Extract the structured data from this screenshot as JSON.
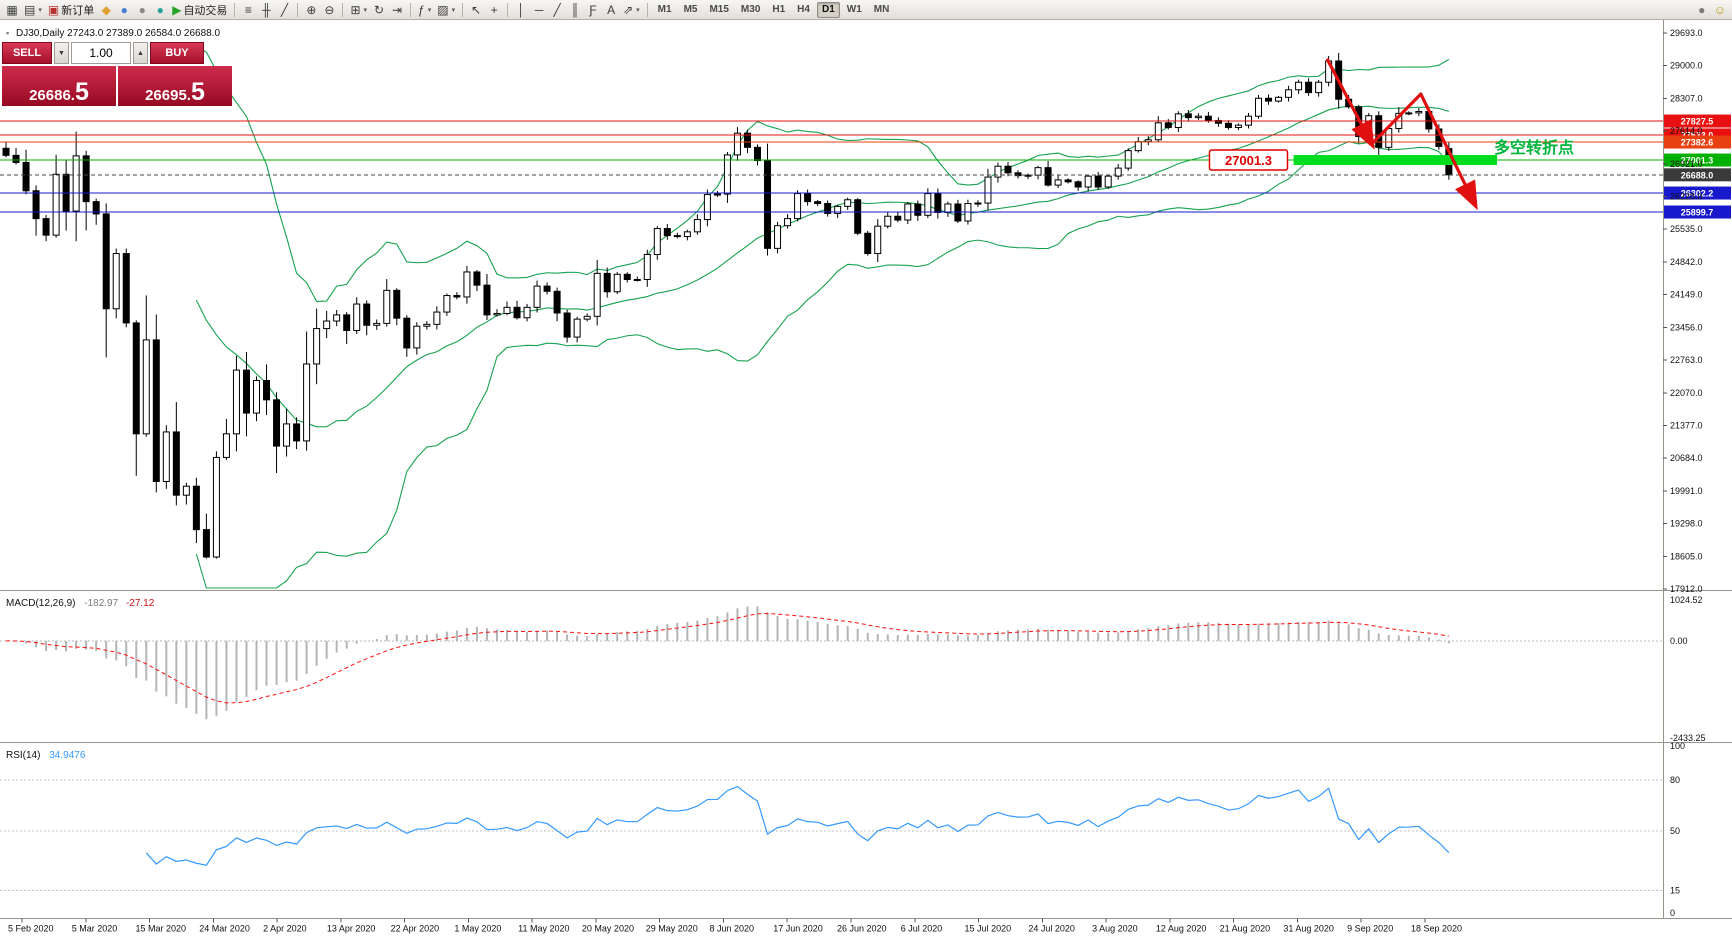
{
  "toolbar": {
    "dropdown_glyph": "▾",
    "items": [
      {
        "name": "new-chart-button",
        "glyph": "▦"
      },
      {
        "name": "chart-profiles-button",
        "glyph": "▤",
        "dropdown": true
      },
      {
        "name": "new-order-button",
        "glyph": "▣",
        "color": "#b8312f",
        "label": "新订单"
      },
      {
        "name": "metaeditor-button",
        "glyph": "◆",
        "color": "#e0a030"
      },
      {
        "name": "history-center-button",
        "glyph": "●",
        "color": "#4a7fd4"
      },
      {
        "name": "global-settings-button",
        "glyph": "●",
        "color": "#8a8a8a"
      },
      {
        "name": "market-button",
        "glyph": "●",
        "color": "#2aa198"
      },
      {
        "name": "autotrading-button",
        "glyph": "▶",
        "color": "#27a427",
        "label": "自动交易"
      },
      {
        "type": "sep"
      },
      {
        "name": "bar-chart-button",
        "glyph": "≡"
      },
      {
        "name": "candlestick-chart-button",
        "glyph": "╫"
      },
      {
        "name": "line-chart-button",
        "glyph": "╱"
      },
      {
        "type": "sep"
      },
      {
        "name": "zoom-in-button",
        "glyph": "⊕"
      },
      {
        "name": "zoom-out-button",
        "glyph": "⊖"
      },
      {
        "type": "sep"
      },
      {
        "name": "tile-windows-button",
        "glyph": "⊞",
        "dropdown": true
      },
      {
        "name": "auto-scroll-button",
        "glyph": "↻"
      },
      {
        "name": "chart-shift-button",
        "glyph": "⇥"
      },
      {
        "type": "sep"
      },
      {
        "name": "indicators-button",
        "glyph": "ƒ",
        "dropdown": true
      },
      {
        "name": "templates-button",
        "glyph": "▨",
        "dropdown": true
      },
      {
        "type": "sep"
      },
      {
        "name": "cursor-button",
        "glyph": "↖"
      },
      {
        "name": "crosshair-button",
        "glyph": "+"
      },
      {
        "type": "sep"
      },
      {
        "name": "vertical-line-button",
        "glyph": "│"
      },
      {
        "name": "horizontal-line-button",
        "glyph": "─"
      },
      {
        "name": "trendline-button",
        "glyph": "╱"
      },
      {
        "name": "channel-button",
        "glyph": "║"
      },
      {
        "name": "fibonacci-button",
        "glyph": "Ƒ"
      },
      {
        "name": "text-button",
        "glyph": "A"
      },
      {
        "name": "arrows-button",
        "glyph": "⇗",
        "dropdown": true
      },
      {
        "type": "sep"
      }
    ],
    "timeframes": [
      "M1",
      "M5",
      "M15",
      "M30",
      "H1",
      "H4",
      "D1",
      "W1",
      "MN"
    ],
    "active_timeframe": "D1",
    "right_icons": [
      {
        "name": "search-button",
        "glyph": "●",
        "color": "#7a7a7a"
      },
      {
        "name": "community-button",
        "glyph": "☺",
        "color": "#c89a20"
      }
    ]
  },
  "trade": {
    "sell_label": "SELL",
    "buy_label": "BUY",
    "volume": "1.00",
    "volume_up_glyph": "▲",
    "volume_down_glyph": "▼",
    "sell_price_main": "26686.",
    "sell_price_pip": "5",
    "buy_price_main": "26695.",
    "buy_price_pip": "5"
  },
  "chart": {
    "header_icon": "▪",
    "header": "DJ30,Daily  27243.0 27389.0 26584.0 26688.0"
  },
  "chart_data": {
    "type": "candlestick",
    "symbol": "DJ30",
    "timeframe": "Daily",
    "title_ohlc": {
      "open": 27243.0,
      "high": 27389.0,
      "low": 26584.0,
      "close": 26688.0
    },
    "closes": [
      27100,
      26950,
      26350,
      25760,
      25410,
      26700,
      25920,
      27090,
      26120,
      25860,
      23850,
      25020,
      23550,
      21200,
      23190,
      20190,
      21240,
      19900,
      20090,
      19170,
      18590,
      20700,
      21200,
      22550,
      21640,
      22330,
      21920,
      20940,
      21410,
      21050,
      22680,
      23430,
      23590,
      23720,
      23390,
      23950,
      23500,
      23540,
      24240,
      23650,
      23020,
      23480,
      23520,
      23780,
      24130,
      24100,
      24630,
      24350,
      23720,
      23750,
      23880,
      23660,
      23880,
      24330,
      24220,
      23760,
      23250,
      23630,
      23690,
      24600,
      24210,
      24580,
      24470,
      24470,
      25000,
      25550,
      25400,
      25380,
      25480,
      25740,
      26270,
      26280,
      27110,
      27570,
      27270,
      26990,
      25130,
      25610,
      25760,
      26290,
      26120,
      26080,
      25870,
      26020,
      26160,
      25450,
      25020,
      25600,
      25810,
      25730,
      26070,
      25830,
      26290,
      25890,
      26070,
      25710,
      26080,
      26090,
      26640,
      26870,
      26730,
      26670,
      26680,
      26840,
      26470,
      26580,
      26540,
      26430,
      26660,
      26430,
      26660,
      26830,
      27200,
      27390,
      27430,
      27790,
      27690,
      27980,
      27900,
      27930,
      27840,
      27780,
      27690,
      27740,
      27930,
      28310,
      28250,
      28330,
      28490,
      28650,
      28430,
      28650,
      29100,
      28290,
      28130,
      27500,
      27940,
      27270,
      27670,
      27990,
      28000,
      28030,
      27660,
      27290,
      26688
    ],
    "last_candle": {
      "open": 27243.0,
      "high": 27389.0,
      "low": 26584.0,
      "close": 26688.0
    },
    "y_axis": {
      "top_price": 29693.0,
      "bottom_price": 17912.0,
      "tick_labels": [
        "29693.0",
        "29000.0",
        "28307.0",
        "27614.0",
        "26921.0",
        "26228.0",
        "25535.0",
        "24842.0",
        "24149.0",
        "23456.0",
        "22763.0",
        "22070.0",
        "21377.0",
        "20684.0",
        "19991.0",
        "19298.0",
        "18605.0",
        "17912.0"
      ]
    },
    "x_axis": {
      "date_labels": [
        "5 Feb 2020",
        "5 Mar 2020",
        "15 Mar 2020",
        "24 Mar 2020",
        "2 Apr 2020",
        "13 Apr 2020",
        "22 Apr 2020",
        "1 May 2020",
        "11 May 2020",
        "20 May 2020",
        "29 May 2020",
        "8 Jun 2020",
        "17 Jun 2020",
        "26 Jun 2020",
        "6 Jul 2020",
        "15 Jul 2020",
        "24 Jul 2020",
        "3 Aug 2020",
        "12 Aug 2020",
        "21 Aug 2020",
        "31 Aug 2020",
        "9 Sep 2020",
        "18 Sep 2020"
      ]
    },
    "levels": [
      {
        "price": 27827.5,
        "label": "27827.5",
        "color": "#e81010",
        "style": "solid"
      },
      {
        "price": 27533.0,
        "label": "27533.0",
        "color": "#e81010",
        "style": "solid"
      },
      {
        "price": 27382.6,
        "label": "27382.6",
        "color": "#e84010",
        "style": "solid"
      },
      {
        "price": 27001.3,
        "label": "27001.3",
        "color": "#00b000",
        "style": "solid"
      },
      {
        "price": 26688.0,
        "label": "26688.0",
        "color": "#4a4a4a",
        "style": "dashed",
        "current": true
      },
      {
        "price": 26302.2,
        "label": "26302.2",
        "color": "#1818cc",
        "style": "solid"
      },
      {
        "price": 25899.7,
        "label": "25899.7",
        "color": "#1818cc",
        "style": "solid"
      }
    ],
    "bollinger": {
      "period": 20,
      "deviation": 2,
      "color": "#17a24f"
    },
    "candle_colors": {
      "bull_fill": "#ffffff",
      "bear_fill": "#000000",
      "outline": "#000000"
    },
    "macd": {
      "label_text": "MACD(12,26,9)",
      "value_main": "-182.97",
      "value_signal": "-27.12",
      "fast": 12,
      "slow": 26,
      "signal": 9,
      "scale_max": 1024.52,
      "scale_min": -2433.25,
      "scale_labels": [
        "1024.52",
        "0.00",
        "-2433.25"
      ],
      "histogram_color": "#b4b4b4",
      "signal_color": "#ff1010"
    },
    "rsi": {
      "label_text": "RSI(14)",
      "value": "34.9476",
      "period": 14,
      "max": 100,
      "min": 0,
      "levels": [
        80,
        50,
        15
      ],
      "scale_labels": [
        "100",
        "80",
        "50",
        "15",
        "0"
      ],
      "line_color": "#3399ff"
    },
    "annotations": {
      "price_tag": {
        "text": "27001.3",
        "x_index": 124,
        "price": 27001.3,
        "color": "#e00000"
      },
      "highlight_bar": {
        "from_index": 128.5,
        "to_index": 148.8,
        "price": 27001.3,
        "color": "#00dc20"
      },
      "note": {
        "text": "多空转折点",
        "x_index": 148.5,
        "price": 27260,
        "color": "#00b43c"
      },
      "arrows": {
        "color": "#e01010",
        "points": [
          [
            131.9,
            29120
          ],
          [
            136.3,
            27340
          ],
          [
            141.2,
            28400
          ],
          [
            146.6,
            26060
          ]
        ],
        "heads": [
          1,
          3
        ]
      }
    }
  }
}
